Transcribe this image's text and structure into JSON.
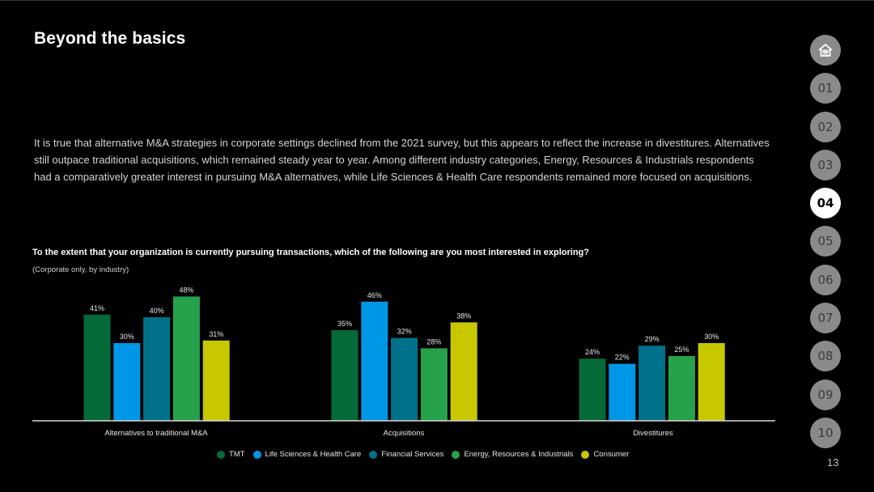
{
  "title": "Beyond the basics",
  "intro": "It is true that alternative M&A strategies in corporate settings declined from the 2021 survey, but this appears to reflect the increase in divestitures. Alternatives still outpace traditional acquisitions, which remained steady year to year. Among different industry categories, Energy, Resources & Industrials respondents had a comparatively greater interest in pursuing M&A alternatives, while Life Sciences & Health Care respondents remained more focused on acquisitions.",
  "question": "To the extent that your organization is currently pursuing transactions, which of the following are you most interested in exploring?",
  "subquestion": "(Corporate only, by industry)",
  "nav": {
    "home_icon": "home-icon",
    "items": [
      "01",
      "02",
      "03",
      "04",
      "05",
      "06",
      "07",
      "08",
      "09",
      "10"
    ],
    "active": "04"
  },
  "page_number": "13",
  "colors": {
    "TMT": "#046a38",
    "Life Sciences & Health Care": "#0097e6",
    "Financial Services": "#00718a",
    "Energy, Resources & Industrials": "#26a24a",
    "Consumer": "#c8c800"
  },
  "chart_data": {
    "type": "bar",
    "categories": [
      "Alternatives to traditional M&A",
      "Acquisitions",
      "Divestitures"
    ],
    "series": [
      {
        "name": "TMT",
        "values": [
          41,
          35,
          24
        ]
      },
      {
        "name": "Life Sciences & Health Care",
        "values": [
          30,
          46,
          22
        ]
      },
      {
        "name": "Financial Services",
        "values": [
          40,
          32,
          29
        ]
      },
      {
        "name": "Energy, Resources & Industrials",
        "values": [
          48,
          28,
          25
        ]
      },
      {
        "name": "Consumer",
        "values": [
          31,
          38,
          30
        ]
      }
    ],
    "value_suffix": "%",
    "ylim": [
      0,
      50
    ],
    "grid": false,
    "legend_position": "bottom"
  }
}
